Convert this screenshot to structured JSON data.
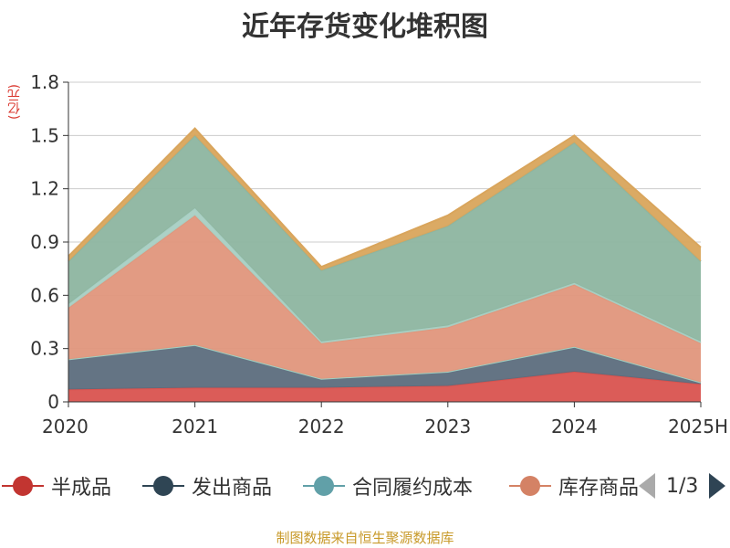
{
  "title": "近年存货变化堆积图",
  "unit": "(亿元)",
  "source": "制图数据来自恒生聚源数据库",
  "legend": {
    "pager_text": "1/3",
    "items": [
      {
        "label": "半成品",
        "color": "#c23531"
      },
      {
        "label": "发出商品",
        "color": "#2f4554"
      },
      {
        "label": "合同履约成本",
        "color": "#61a0a8"
      },
      {
        "label": "库存商品",
        "color": "#d48265"
      }
    ]
  },
  "chart_data": {
    "type": "area",
    "stacked": true,
    "title": "近年存货变化堆积图",
    "ylabel": "(亿元)",
    "categories": [
      "2020",
      "2021",
      "2022",
      "2023",
      "2024",
      "2025H"
    ],
    "ylim": [
      0,
      1.8
    ],
    "yticks": [
      "0",
      "0.3",
      "0.6",
      "0.9",
      "1.2",
      "1.5",
      "1.8"
    ],
    "grid": true,
    "legend_position": "bottom",
    "series": [
      {
        "name": "半成品",
        "color": "#d9534f",
        "values": [
          0.07,
          0.08,
          0.08,
          0.09,
          0.17,
          0.1
        ]
      },
      {
        "name": "发出商品",
        "color": "#5c6d7d",
        "values": [
          0.17,
          0.24,
          0.05,
          0.08,
          0.14,
          0.01
        ]
      },
      {
        "name": "合同履约成本",
        "color": "#9fd0c3",
        "values": [
          0.0,
          0.0,
          0.0,
          0.0,
          0.0,
          0.0
        ]
      },
      {
        "name": "库存商品",
        "color": "#e0967c",
        "values": [
          0.29,
          0.73,
          0.2,
          0.25,
          0.35,
          0.22
        ]
      },
      {
        "name": "",
        "color": "#a8cfc3",
        "values": [
          0.02,
          0.04,
          0.01,
          0.01,
          0.01,
          0.01
        ]
      },
      {
        "name": "",
        "color": "#8db5a0",
        "values": [
          0.24,
          0.41,
          0.4,
          0.56,
          0.79,
          0.45
        ]
      },
      {
        "name": "",
        "color": "#d9a55c",
        "values": [
          0.03,
          0.04,
          0.02,
          0.06,
          0.04,
          0.08
        ]
      }
    ]
  }
}
